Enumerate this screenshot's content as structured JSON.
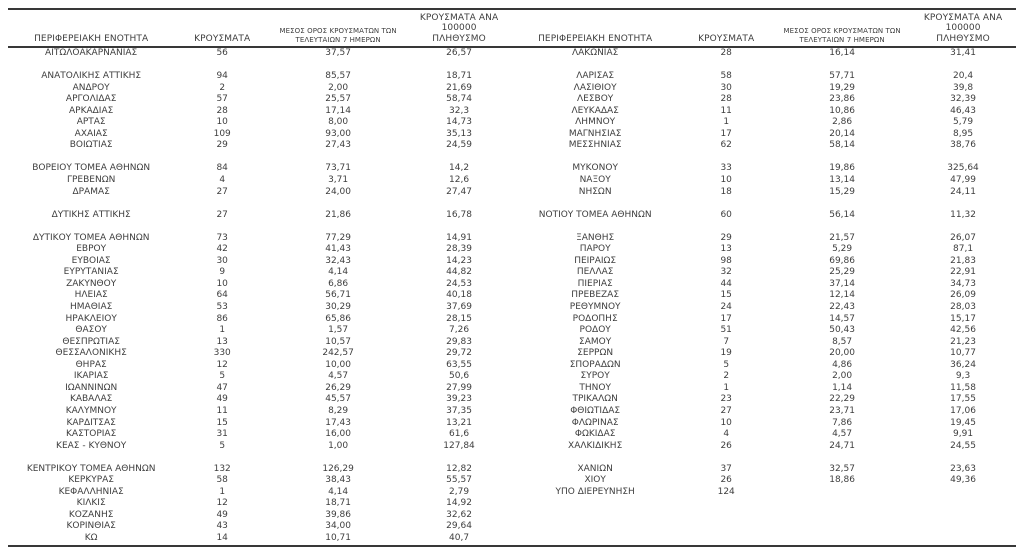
{
  "table": {
    "columns": {
      "region": "ΠΕΡΙΦΕΡΕΙΑΚΗ ΕΝΟΤΗΤΑ",
      "cases": "ΚΡΟΥΣΜΑΤΑ",
      "avg7_line1": "ΜΕΣΟΣ ΟΡΟΣ ΚΡΟΥΣΜΑΤΩΝ ΤΩΝ",
      "avg7_line2": "ΤΕΛΕΥΤΑΙΩΝ 7 ΗΜΕΡΩΝ",
      "per100k_line1": "ΚΡΟΥΣΜΑΤΑ ΑΝΑ 100000",
      "per100k_line2": "ΠΛΗΘΥΣΜΟ"
    },
    "left_rows": [
      [
        "ΑΙΤΩΛΟΑΚΑΡΝΑΝΙΑΣ",
        "56",
        "37,57",
        "26,57"
      ],
      null,
      [
        "ΑΝΑΤΟΛΙΚΗΣ ΑΤΤΙΚΗΣ",
        "94",
        "85,57",
        "18,71"
      ],
      [
        "ΑΝΔΡΟΥ",
        "2",
        "2,00",
        "21,69"
      ],
      [
        "ΑΡΓΟΛΙΔΑΣ",
        "57",
        "25,57",
        "58,74"
      ],
      [
        "ΑΡΚΑΔΙΑΣ",
        "28",
        "17,14",
        "32,3"
      ],
      [
        "ΑΡΤΑΣ",
        "10",
        "8,00",
        "14,73"
      ],
      [
        "ΑΧΑΪΑΣ",
        "109",
        "93,00",
        "35,13"
      ],
      [
        "ΒΟΙΩΤΙΑΣ",
        "29",
        "27,43",
        "24,59"
      ],
      null,
      [
        "ΒΟΡΕΙΟΥ ΤΟΜΕΑ ΑΘΗΝΩΝ",
        "84",
        "73,71",
        "14,2"
      ],
      [
        "ΓΡΕΒΕΝΩΝ",
        "4",
        "3,71",
        "12,6"
      ],
      [
        "ΔΡΑΜΑΣ",
        "27",
        "24,00",
        "27,47"
      ],
      null,
      [
        "ΔΥΤΙΚΗΣ ΑΤΤΙΚΗΣ",
        "27",
        "21,86",
        "16,78"
      ],
      null,
      [
        "ΔΥΤΙΚΟΥ ΤΟΜΕΑ ΑΘΗΝΩΝ",
        "73",
        "77,29",
        "14,91"
      ],
      [
        "ΕΒΡΟΥ",
        "42",
        "41,43",
        "28,39"
      ],
      [
        "ΕΥΒΟΙΑΣ",
        "30",
        "32,43",
        "14,23"
      ],
      [
        "ΕΥΡΥΤΑΝΙΑΣ",
        "9",
        "4,14",
        "44,82"
      ],
      [
        "ΖΑΚΥΝΘΟΥ",
        "10",
        "6,86",
        "24,53"
      ],
      [
        "ΗΛΕΙΑΣ",
        "64",
        "56,71",
        "40,18"
      ],
      [
        "ΗΜΑΘΙΑΣ",
        "53",
        "30,29",
        "37,69"
      ],
      [
        "ΗΡΑΚΛΕΙΟΥ",
        "86",
        "65,86",
        "28,15"
      ],
      [
        "ΘΑΣΟΥ",
        "1",
        "1,57",
        "7,26"
      ],
      [
        "ΘΕΣΠΡΩΤΙΑΣ",
        "13",
        "10,57",
        "29,83"
      ],
      [
        "ΘΕΣΣΑΛΟΝΙΚΗΣ",
        "330",
        "242,57",
        "29,72"
      ],
      [
        "ΘΗΡΑΣ",
        "12",
        "10,00",
        "63,55"
      ],
      [
        "ΙΚΑΡΙΑΣ",
        "5",
        "4,57",
        "50,6"
      ],
      [
        "ΙΩΑΝΝΙΝΩΝ",
        "47",
        "26,29",
        "27,99"
      ],
      [
        "ΚΑΒΑΛΑΣ",
        "49",
        "45,57",
        "39,23"
      ],
      [
        "ΚΑΛΥΜΝΟΥ",
        "11",
        "8,29",
        "37,35"
      ],
      [
        "ΚΑΡΔΙΤΣΑΣ",
        "15",
        "17,43",
        "13,21"
      ],
      [
        "ΚΑΣΤΟΡΙΑΣ",
        "31",
        "16,00",
        "61,6"
      ],
      [
        "ΚΕΑΣ - ΚΥΘΝΟΥ",
        "5",
        "1,00",
        "127,84"
      ],
      null,
      [
        "ΚΕΝΤΡΙΚΟΥ ΤΟΜΕΑ ΑΘΗΝΩΝ",
        "132",
        "126,29",
        "12,82"
      ],
      [
        "ΚΕΡΚΥΡΑΣ",
        "58",
        "38,43",
        "55,57"
      ],
      [
        "ΚΕΦΑΛΛΗΝΙΑΣ",
        "1",
        "4,14",
        "2,79"
      ],
      [
        "ΚΙΛΚΙΣ",
        "12",
        "18,71",
        "14,92"
      ],
      [
        "ΚΟΖΑΝΗΣ",
        "49",
        "39,86",
        "32,62"
      ],
      [
        "ΚΟΡΙΝΘΙΑΣ",
        "43",
        "34,00",
        "29,64"
      ],
      [
        "ΚΩ",
        "14",
        "10,71",
        "40,7"
      ]
    ],
    "right_rows": [
      [
        "ΛΑΚΩΝΙΑΣ",
        "28",
        "16,14",
        "31,41"
      ],
      null,
      [
        "ΛΑΡΙΣΑΣ",
        "58",
        "57,71",
        "20,4"
      ],
      [
        "ΛΑΣΙΘΙΟΥ",
        "30",
        "19,29",
        "39,8"
      ],
      [
        "ΛΕΣΒΟΥ",
        "28",
        "23,86",
        "32,39"
      ],
      [
        "ΛΕΥΚΑΔΑΣ",
        "11",
        "10,86",
        "46,43"
      ],
      [
        "ΛΗΜΝΟΥ",
        "1",
        "2,86",
        "5,79"
      ],
      [
        "ΜΑΓΝΗΣΙΑΣ",
        "17",
        "20,14",
        "8,95"
      ],
      [
        "ΜΕΣΣΗΝΙΑΣ",
        "62",
        "58,14",
        "38,76"
      ],
      null,
      [
        "ΜΥΚΟΝΟΥ",
        "33",
        "19,86",
        "325,64"
      ],
      [
        "ΝΑΞΟΥ",
        "10",
        "13,14",
        "47,99"
      ],
      [
        "ΝΗΣΩΝ",
        "18",
        "15,29",
        "24,11"
      ],
      null,
      [
        "ΝΟΤΙΟΥ ΤΟΜΕΑ ΑΘΗΝΩΝ",
        "60",
        "56,14",
        "11,32"
      ],
      null,
      [
        "ΞΑΝΘΗΣ",
        "29",
        "21,57",
        "26,07"
      ],
      [
        "ΠΑΡΟΥ",
        "13",
        "5,29",
        "87,1"
      ],
      [
        "ΠΕΙΡΑΙΩΣ",
        "98",
        "69,86",
        "21,83"
      ],
      [
        "ΠΕΛΛΑΣ",
        "32",
        "25,29",
        "22,91"
      ],
      [
        "ΠΙΕΡΙΑΣ",
        "44",
        "37,14",
        "34,73"
      ],
      [
        "ΠΡΕΒΕΖΑΣ",
        "15",
        "12,14",
        "26,09"
      ],
      [
        "ΡΕΘΥΜΝΟΥ",
        "24",
        "22,43",
        "28,03"
      ],
      [
        "ΡΟΔΟΠΗΣ",
        "17",
        "14,57",
        "15,17"
      ],
      [
        "ΡΟΔΟΥ",
        "51",
        "50,43",
        "42,56"
      ],
      [
        "ΣΑΜΟΥ",
        "7",
        "8,57",
        "21,23"
      ],
      [
        "ΣΕΡΡΩΝ",
        "19",
        "20,00",
        "10,77"
      ],
      [
        "ΣΠΟΡΑΔΩΝ",
        "5",
        "4,86",
        "36,24"
      ],
      [
        "ΣΥΡΟΥ",
        "2",
        "2,00",
        "9,3"
      ],
      [
        "ΤΗΝΟΥ",
        "1",
        "1,14",
        "11,58"
      ],
      [
        "ΤΡΙΚΑΛΩΝ",
        "23",
        "22,29",
        "17,55"
      ],
      [
        "ΦΘΙΩΤΙΔΑΣ",
        "27",
        "23,71",
        "17,06"
      ],
      [
        "ΦΛΩΡΙΝΑΣ",
        "10",
        "7,86",
        "19,45"
      ],
      [
        "ΦΩΚΙΔΑΣ",
        "4",
        "4,57",
        "9,91"
      ],
      [
        "ΧΑΛΚΙΔΙΚΗΣ",
        "26",
        "24,71",
        "24,55"
      ],
      null,
      [
        "ΧΑΝΙΩΝ",
        "37",
        "32,57",
        "23,63"
      ],
      [
        "ΧΙΟΥ",
        "26",
        "18,86",
        "49,36"
      ],
      [
        "ΥΠΟ ΔΙΕΡΕΥΝΗΣΗ",
        "124",
        "",
        ""
      ],
      null,
      null,
      null,
      null
    ]
  }
}
